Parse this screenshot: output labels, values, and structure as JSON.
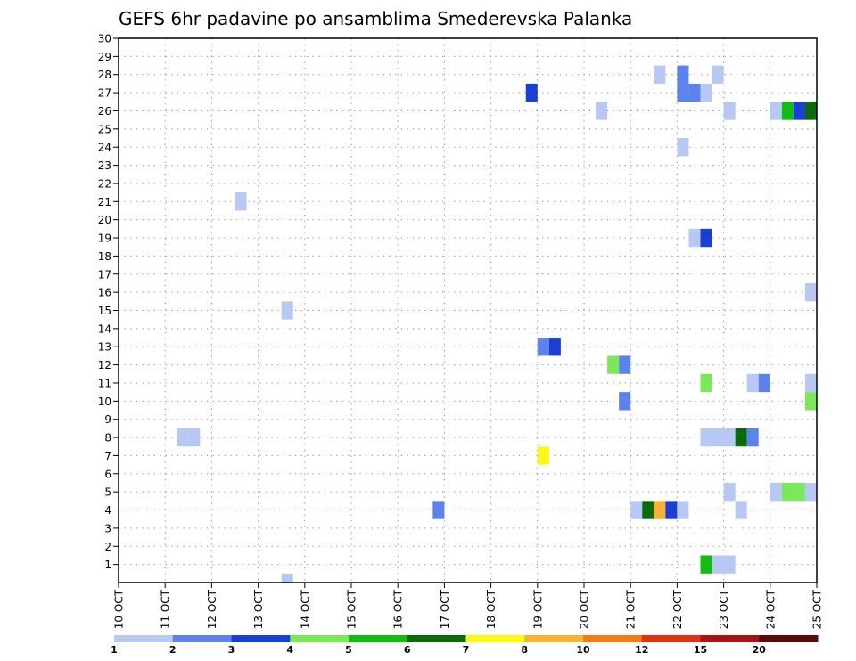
{
  "chart_data": {
    "type": "heatmap",
    "title": "GEFS 6hr padavine po ansamblima Smederevska Palanka",
    "x_tick_labels": [
      "10 OCT",
      "11 OCT",
      "12 OCT",
      "13 OCT",
      "14 OCT",
      "15 OCT",
      "16 OCT",
      "17 OCT",
      "18 OCT",
      "19 OCT",
      "20 OCT",
      "21 OCT",
      "22 OCT",
      "23 OCT",
      "24 OCT",
      "25 OCT"
    ],
    "xlim_days": [
      10,
      25
    ],
    "ylim": [
      0,
      30
    ],
    "y_ticks": [
      1,
      2,
      3,
      4,
      5,
      6,
      7,
      8,
      9,
      10,
      11,
      12,
      13,
      14,
      15,
      16,
      17,
      18,
      19,
      20,
      21,
      22,
      23,
      24,
      25,
      26,
      27,
      28,
      29,
      30
    ],
    "grid": true,
    "colorbar": {
      "labels": [
        "1",
        "2",
        "3",
        "4",
        "5",
        "6",
        "7",
        "8",
        "10",
        "12",
        "15",
        "20"
      ],
      "colors": [
        "#b7c8f5",
        "#5c82ec",
        "#1a3fd4",
        "#7be85c",
        "#12bd12",
        "#0b6a0b",
        "#fafa14",
        "#fbb232",
        "#f57b14",
        "#e03314",
        "#a81414",
        "#5a0a0a"
      ]
    },
    "cell_step_hours": 6,
    "cells": [
      {
        "day": 21.5,
        "member": 28,
        "color": "#b7c8f5"
      },
      {
        "day": 22.0,
        "member": 28,
        "color": "#5c82ec"
      },
      {
        "day": 22.75,
        "member": 28,
        "color": "#b7c8f5"
      },
      {
        "day": 18.75,
        "member": 27,
        "color": "#1a3fd4"
      },
      {
        "day": 22.0,
        "member": 27,
        "color": "#5c82ec"
      },
      {
        "day": 22.25,
        "member": 27,
        "color": "#5c82ec"
      },
      {
        "day": 22.5,
        "member": 27,
        "color": "#b7c8f5"
      },
      {
        "day": 20.25,
        "member": 26,
        "color": "#b7c8f5"
      },
      {
        "day": 23.0,
        "member": 26,
        "color": "#b7c8f5"
      },
      {
        "day": 24.0,
        "member": 26,
        "color": "#b7c8f5"
      },
      {
        "day": 24.25,
        "member": 26,
        "color": "#12bd12"
      },
      {
        "day": 24.5,
        "member": 26,
        "color": "#1a3fd4"
      },
      {
        "day": 24.75,
        "member": 26,
        "color": "#0b6a0b"
      },
      {
        "day": 22.0,
        "member": 24,
        "color": "#b7c8f5"
      },
      {
        "day": 12.5,
        "member": 21,
        "color": "#b7c8f5"
      },
      {
        "day": 22.25,
        "member": 19,
        "color": "#b7c8f5"
      },
      {
        "day": 22.5,
        "member": 19,
        "color": "#1a3fd4"
      },
      {
        "day": 24.75,
        "member": 16,
        "color": "#b7c8f5"
      },
      {
        "day": 13.5,
        "member": 15,
        "color": "#b7c8f5"
      },
      {
        "day": 19.0,
        "member": 13,
        "color": "#5c82ec"
      },
      {
        "day": 19.25,
        "member": 13,
        "color": "#1a3fd4"
      },
      {
        "day": 20.5,
        "member": 12,
        "color": "#7be85c"
      },
      {
        "day": 20.75,
        "member": 12,
        "color": "#5c82ec"
      },
      {
        "day": 22.5,
        "member": 11,
        "color": "#7be85c"
      },
      {
        "day": 23.5,
        "member": 11,
        "color": "#b7c8f5"
      },
      {
        "day": 23.75,
        "member": 11,
        "color": "#5c82ec"
      },
      {
        "day": 24.75,
        "member": 11,
        "color": "#b7c8f5"
      },
      {
        "day": 20.75,
        "member": 10,
        "color": "#5c82ec"
      },
      {
        "day": 24.75,
        "member": 10,
        "color": "#7be85c"
      },
      {
        "day": 11.25,
        "member": 8,
        "color": "#b7c8f5"
      },
      {
        "day": 11.5,
        "member": 8,
        "color": "#b7c8f5"
      },
      {
        "day": 22.5,
        "member": 8,
        "color": "#b7c8f5"
      },
      {
        "day": 22.75,
        "member": 8,
        "color": "#b7c8f5"
      },
      {
        "day": 23.0,
        "member": 8,
        "color": "#b7c8f5"
      },
      {
        "day": 23.25,
        "member": 8,
        "color": "#0b6a0b"
      },
      {
        "day": 23.5,
        "member": 8,
        "color": "#5c82ec"
      },
      {
        "day": 19.0,
        "member": 7,
        "color": "#fafa14"
      },
      {
        "day": 23.0,
        "member": 5,
        "color": "#b7c8f5"
      },
      {
        "day": 24.0,
        "member": 5,
        "color": "#b7c8f5"
      },
      {
        "day": 24.25,
        "member": 5,
        "color": "#7be85c"
      },
      {
        "day": 24.5,
        "member": 5,
        "color": "#7be85c"
      },
      {
        "day": 24.75,
        "member": 5,
        "color": "#b7c8f5"
      },
      {
        "day": 16.75,
        "member": 4,
        "color": "#5c82ec"
      },
      {
        "day": 21.0,
        "member": 4,
        "color": "#b7c8f5"
      },
      {
        "day": 21.25,
        "member": 4,
        "color": "#0b6a0b"
      },
      {
        "day": 21.5,
        "member": 4,
        "color": "#fbb232"
      },
      {
        "day": 21.75,
        "member": 4,
        "color": "#1a3fd4"
      },
      {
        "day": 22.0,
        "member": 4,
        "color": "#b7c8f5"
      },
      {
        "day": 23.25,
        "member": 4,
        "color": "#b7c8f5"
      },
      {
        "day": 22.5,
        "member": 1,
        "color": "#12bd12"
      },
      {
        "day": 22.75,
        "member": 1,
        "color": "#b7c8f5"
      },
      {
        "day": 23.0,
        "member": 1,
        "color": "#b7c8f5"
      },
      {
        "day": 13.5,
        "member": 0,
        "color": "#b7c8f5"
      }
    ]
  }
}
